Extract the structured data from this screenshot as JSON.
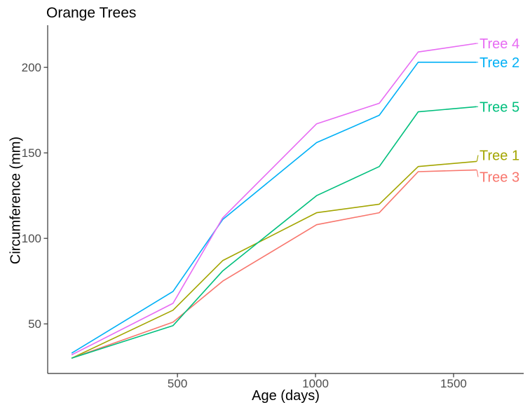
{
  "chart_data": {
    "type": "line",
    "title": "Orange Trees",
    "xlabel": "Age (days)",
    "ylabel": "Circumference (mm)",
    "x": [
      118,
      484,
      664,
      1004,
      1231,
      1372,
      1582
    ],
    "series": [
      {
        "name": "Tree 1",
        "color": "#A3A500",
        "values": [
          30,
          58,
          87,
          115,
          120,
          142,
          145
        ]
      },
      {
        "name": "Tree 2",
        "color": "#00B0F6",
        "values": [
          33,
          69,
          111,
          156,
          172,
          203,
          203
        ]
      },
      {
        "name": "Tree 3",
        "color": "#F8766D",
        "values": [
          30,
          51,
          75,
          108,
          115,
          139,
          140
        ]
      },
      {
        "name": "Tree 4",
        "color": "#E76BF3",
        "values": [
          32,
          62,
          112,
          167,
          179,
          209,
          214
        ]
      },
      {
        "name": "Tree 5",
        "color": "#00BF7D",
        "values": [
          30,
          49,
          81,
          125,
          142,
          174,
          177
        ]
      }
    ],
    "x_ticks": [
      500,
      1000,
      1500
    ],
    "y_ticks": [
      50,
      100,
      150,
      200
    ],
    "xlim": [
      30,
      1754
    ],
    "ylim": [
      21,
      223
    ],
    "grid": false,
    "legend": "direct-labels-right",
    "axis_color": "#333333",
    "tick_label_color": "#4d4d4d",
    "background": "#ffffff"
  }
}
